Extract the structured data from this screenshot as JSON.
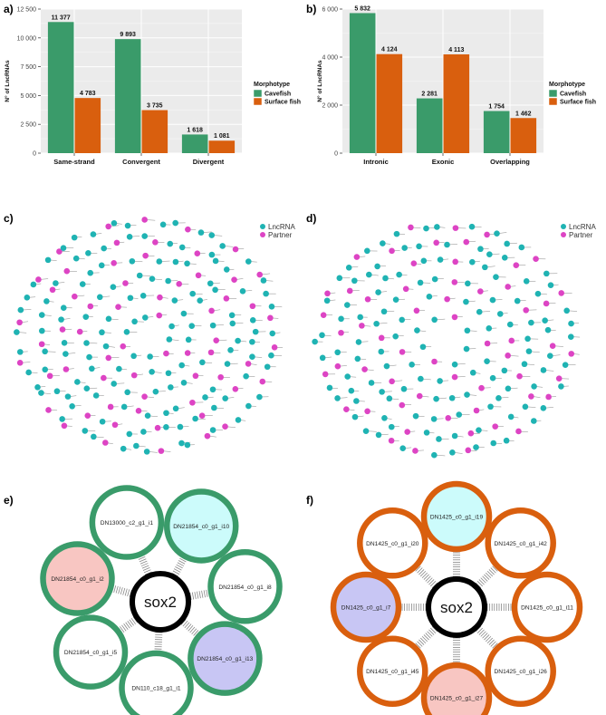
{
  "colors": {
    "cavefish": "#3a9b6a",
    "surface": "#d95f0e",
    "lncrna": "#1fb3b3",
    "partner": "#dd44c4",
    "panel_bg": "#ebebeb",
    "grid": "#ffffff",
    "hub": "#000000",
    "fill_cyan": "#ccfbfb",
    "fill_pink": "#f8c6c2",
    "fill_lavender": "#c8c6f4"
  },
  "panel_labels": {
    "a": "a)",
    "b": "b)",
    "c": "c)",
    "d": "d)",
    "e": "e)",
    "f": "f)"
  },
  "chart_data": [
    {
      "type": "bar",
      "id": "a",
      "title": "",
      "xlabel": "",
      "ylabel": "N° of LncRNAs",
      "ylim": [
        0,
        12500
      ],
      "yticks": [
        0,
        2500,
        5000,
        7500,
        10000,
        12500
      ],
      "ytick_labels": [
        "0",
        "2 500",
        "5 000",
        "7 500",
        "10 000",
        "12 500"
      ],
      "categories": [
        "Same-strand",
        "Convergent",
        "Divergent"
      ],
      "series": [
        {
          "name": "Cavefish",
          "values": [
            11377,
            9893,
            1618
          ],
          "labels": [
            "11 377",
            "9 893",
            "1 618"
          ]
        },
        {
          "name": "Surface fish",
          "values": [
            4783,
            3735,
            1081
          ],
          "labels": [
            "4 783",
            "3 735",
            "1 081"
          ]
        }
      ],
      "legend_title": "Morphotype",
      "legend_position": "right"
    },
    {
      "type": "bar",
      "id": "b",
      "title": "",
      "xlabel": "",
      "ylabel": "N° of LncRNAs",
      "ylim": [
        0,
        6000
      ],
      "yticks": [
        0,
        2000,
        4000,
        6000
      ],
      "ytick_labels": [
        "0",
        "2 000",
        "4 000",
        "6 000"
      ],
      "categories": [
        "Intronic",
        "Exonic",
        "Overlapping"
      ],
      "series": [
        {
          "name": "Cavefish",
          "values": [
            5832,
            2281,
            1754
          ],
          "labels": [
            "5 832",
            "2 281",
            "1 754"
          ]
        },
        {
          "name": "Surface fish",
          "values": [
            4124,
            4113,
            1462
          ],
          "labels": [
            "4 124",
            "4 113",
            "1 462"
          ]
        }
      ],
      "legend_title": "Morphotype",
      "legend_position": "right"
    }
  ],
  "networks": {
    "legend": [
      "LncRNA",
      "Partner"
    ],
    "c": {
      "node_types": "LPLLPLLLPLLPLLLPLPLLLPLLPLLLPLPLLLPLLPLLLPLPLLPLLLPLLPLPLLLPLLPLLLPLPLLLPLLPLLPLLLPLPLLLPLLPLLLPLPLLPLLLPLLPLPLLLPLLPLLLPLPLLLPLLPLLPLLLPLPLLLPLLPLLLPLPLLPLLLPLLPLPLLLPLLPLLLPLPLLLPLLPLLPLLLPLPLLLPLLPLLLPLPLLPLLLPLLPLPLLLPLLPLLLPLPLLLPLLPLLPLLLPLPLLLPLLPLLLPLPLLPLLLPLLPLPLLLPLLPLLLP"
    },
    "d": {
      "node_types": "LLPLLLPLPLLPLLLPLLPLPLLLPLLPLLLPLPLLPLLLPLLPLPLLLPLLPLLLPLPLLPLLLPLLPLPLLLPLLPLLLPLPLLPLLLPLLPLPLLLPLLPLLLPLPLLPLLLPLLPLPLLLPLLPLLLPLPLLPLLLPLLPLPLLLPLLPLLLPLPLLPLLLPLLPLPLLLPLLPLLLPLPLLPLLLPLLPLPLLLPLLPLLLPLPLLPLLLPLLPLPLLLPLLPLLLPLPLLPLLLPLLPLPLLLPLLPLLLPLPLLPLLLPLLPL"
    }
  },
  "hub_e": {
    "center": "sox2",
    "ring_color": "#3a9b6a",
    "nodes": [
      {
        "label": "DN13000_c2_g1_i1",
        "fill": "#ffffff"
      },
      {
        "label": "DN21854_c0_g1_i10",
        "fill": "#ccfbfb"
      },
      {
        "label": "DN21854_c0_g1_i8",
        "fill": "#ffffff"
      },
      {
        "label": "DN21854_c0_g1_i13",
        "fill": "#c8c6f4"
      },
      {
        "label": "DN110_c18_g1_i1",
        "fill": "#ffffff"
      },
      {
        "label": "DN21854_c0_g1_i5",
        "fill": "#ffffff"
      },
      {
        "label": "DN21854_c0_g1_i2",
        "fill": "#f8c6c2"
      }
    ]
  },
  "hub_f": {
    "center": "sox2",
    "ring_color": "#d95f0e",
    "nodes": [
      {
        "label": "DN1425_c0_g1_i19",
        "fill": "#ccfbfb"
      },
      {
        "label": "DN1425_c0_g1_i42",
        "fill": "#ffffff"
      },
      {
        "label": "DN1425_c0_g1_i11",
        "fill": "#ffffff"
      },
      {
        "label": "DN1425_c0_g1_i26",
        "fill": "#ffffff"
      },
      {
        "label": "DN1425_c0_g1_i27",
        "fill": "#f8c6c2"
      },
      {
        "label": "DN1425_c0_g1_i45",
        "fill": "#ffffff"
      },
      {
        "label": "DN1425_c0_g1_i7",
        "fill": "#c8c6f4"
      },
      {
        "label": "DN1425_c0_g1_i20",
        "fill": "#ffffff"
      }
    ]
  }
}
